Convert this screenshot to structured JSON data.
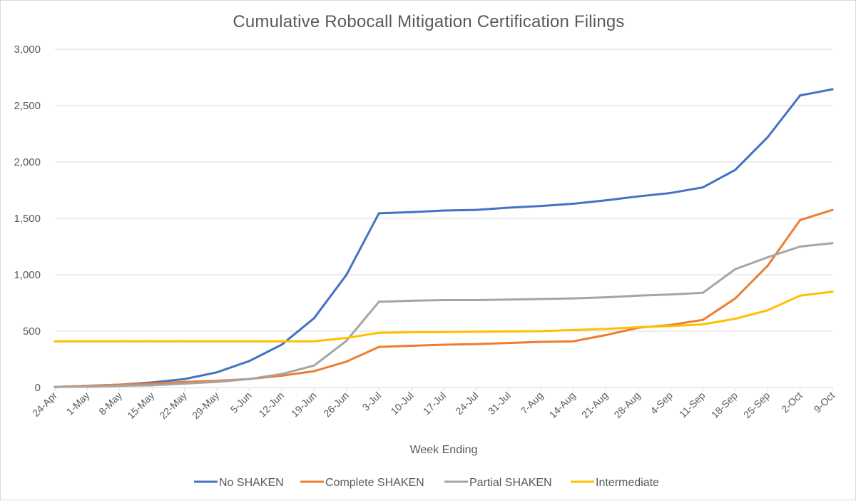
{
  "chart_data": {
    "type": "line",
    "title": "Cumulative Robocall Mitigation Certification Filings",
    "xlabel": "Week Ending",
    "ylabel": "",
    "ylim": [
      0,
      3000
    ],
    "yticks": [
      0,
      500,
      1000,
      1500,
      2000,
      2500,
      3000
    ],
    "ytick_labels": [
      "0",
      "500",
      "1,000",
      "1,500",
      "2,000",
      "2,500",
      "3,000"
    ],
    "grid": "horizontal",
    "legend_position": "bottom",
    "categories": [
      "24-Apr",
      "1-May",
      "8-May",
      "15-May",
      "22-May",
      "29-May",
      "5-Jun",
      "12-Jun",
      "19-Jun",
      "26-Jun",
      "3-Jul",
      "10-Jul",
      "17-Jul",
      "24-Jul",
      "31-Jul",
      "7-Aug",
      "14-Aug",
      "21-Aug",
      "28-Aug",
      "4-Sep",
      "11-Sep",
      "18-Sep",
      "25-Sep",
      "2-Oct",
      "9-Oct"
    ],
    "series": [
      {
        "name": "No SHAKEN",
        "color": "#4472C4",
        "values": [
          5,
          15,
          25,
          45,
          75,
          135,
          235,
          380,
          615,
          1000,
          1545,
          1555,
          1570,
          1575,
          1595,
          1610,
          1630,
          1660,
          1695,
          1725,
          1775,
          1930,
          2220,
          2590,
          2645
        ]
      },
      {
        "name": "Complete SHAKEN",
        "color": "#ED7D31",
        "values": [
          5,
          15,
          25,
          35,
          50,
          60,
          75,
          105,
          145,
          230,
          360,
          370,
          380,
          385,
          395,
          405,
          410,
          465,
          530,
          555,
          600,
          790,
          1080,
          1485,
          1575
        ]
      },
      {
        "name": "Partial SHAKEN",
        "color": "#A5A5A5",
        "values": [
          5,
          8,
          15,
          20,
          35,
          50,
          75,
          120,
          195,
          415,
          760,
          770,
          775,
          775,
          780,
          785,
          790,
          800,
          815,
          825,
          840,
          1050,
          1155,
          1250,
          1280
        ]
      },
      {
        "name": "Intermediate",
        "color": "#FFC000",
        "values": [
          410,
          410,
          410,
          410,
          410,
          410,
          410,
          410,
          410,
          440,
          485,
          490,
          492,
          495,
          498,
          500,
          510,
          520,
          535,
          545,
          560,
          610,
          685,
          815,
          850
        ]
      }
    ]
  }
}
